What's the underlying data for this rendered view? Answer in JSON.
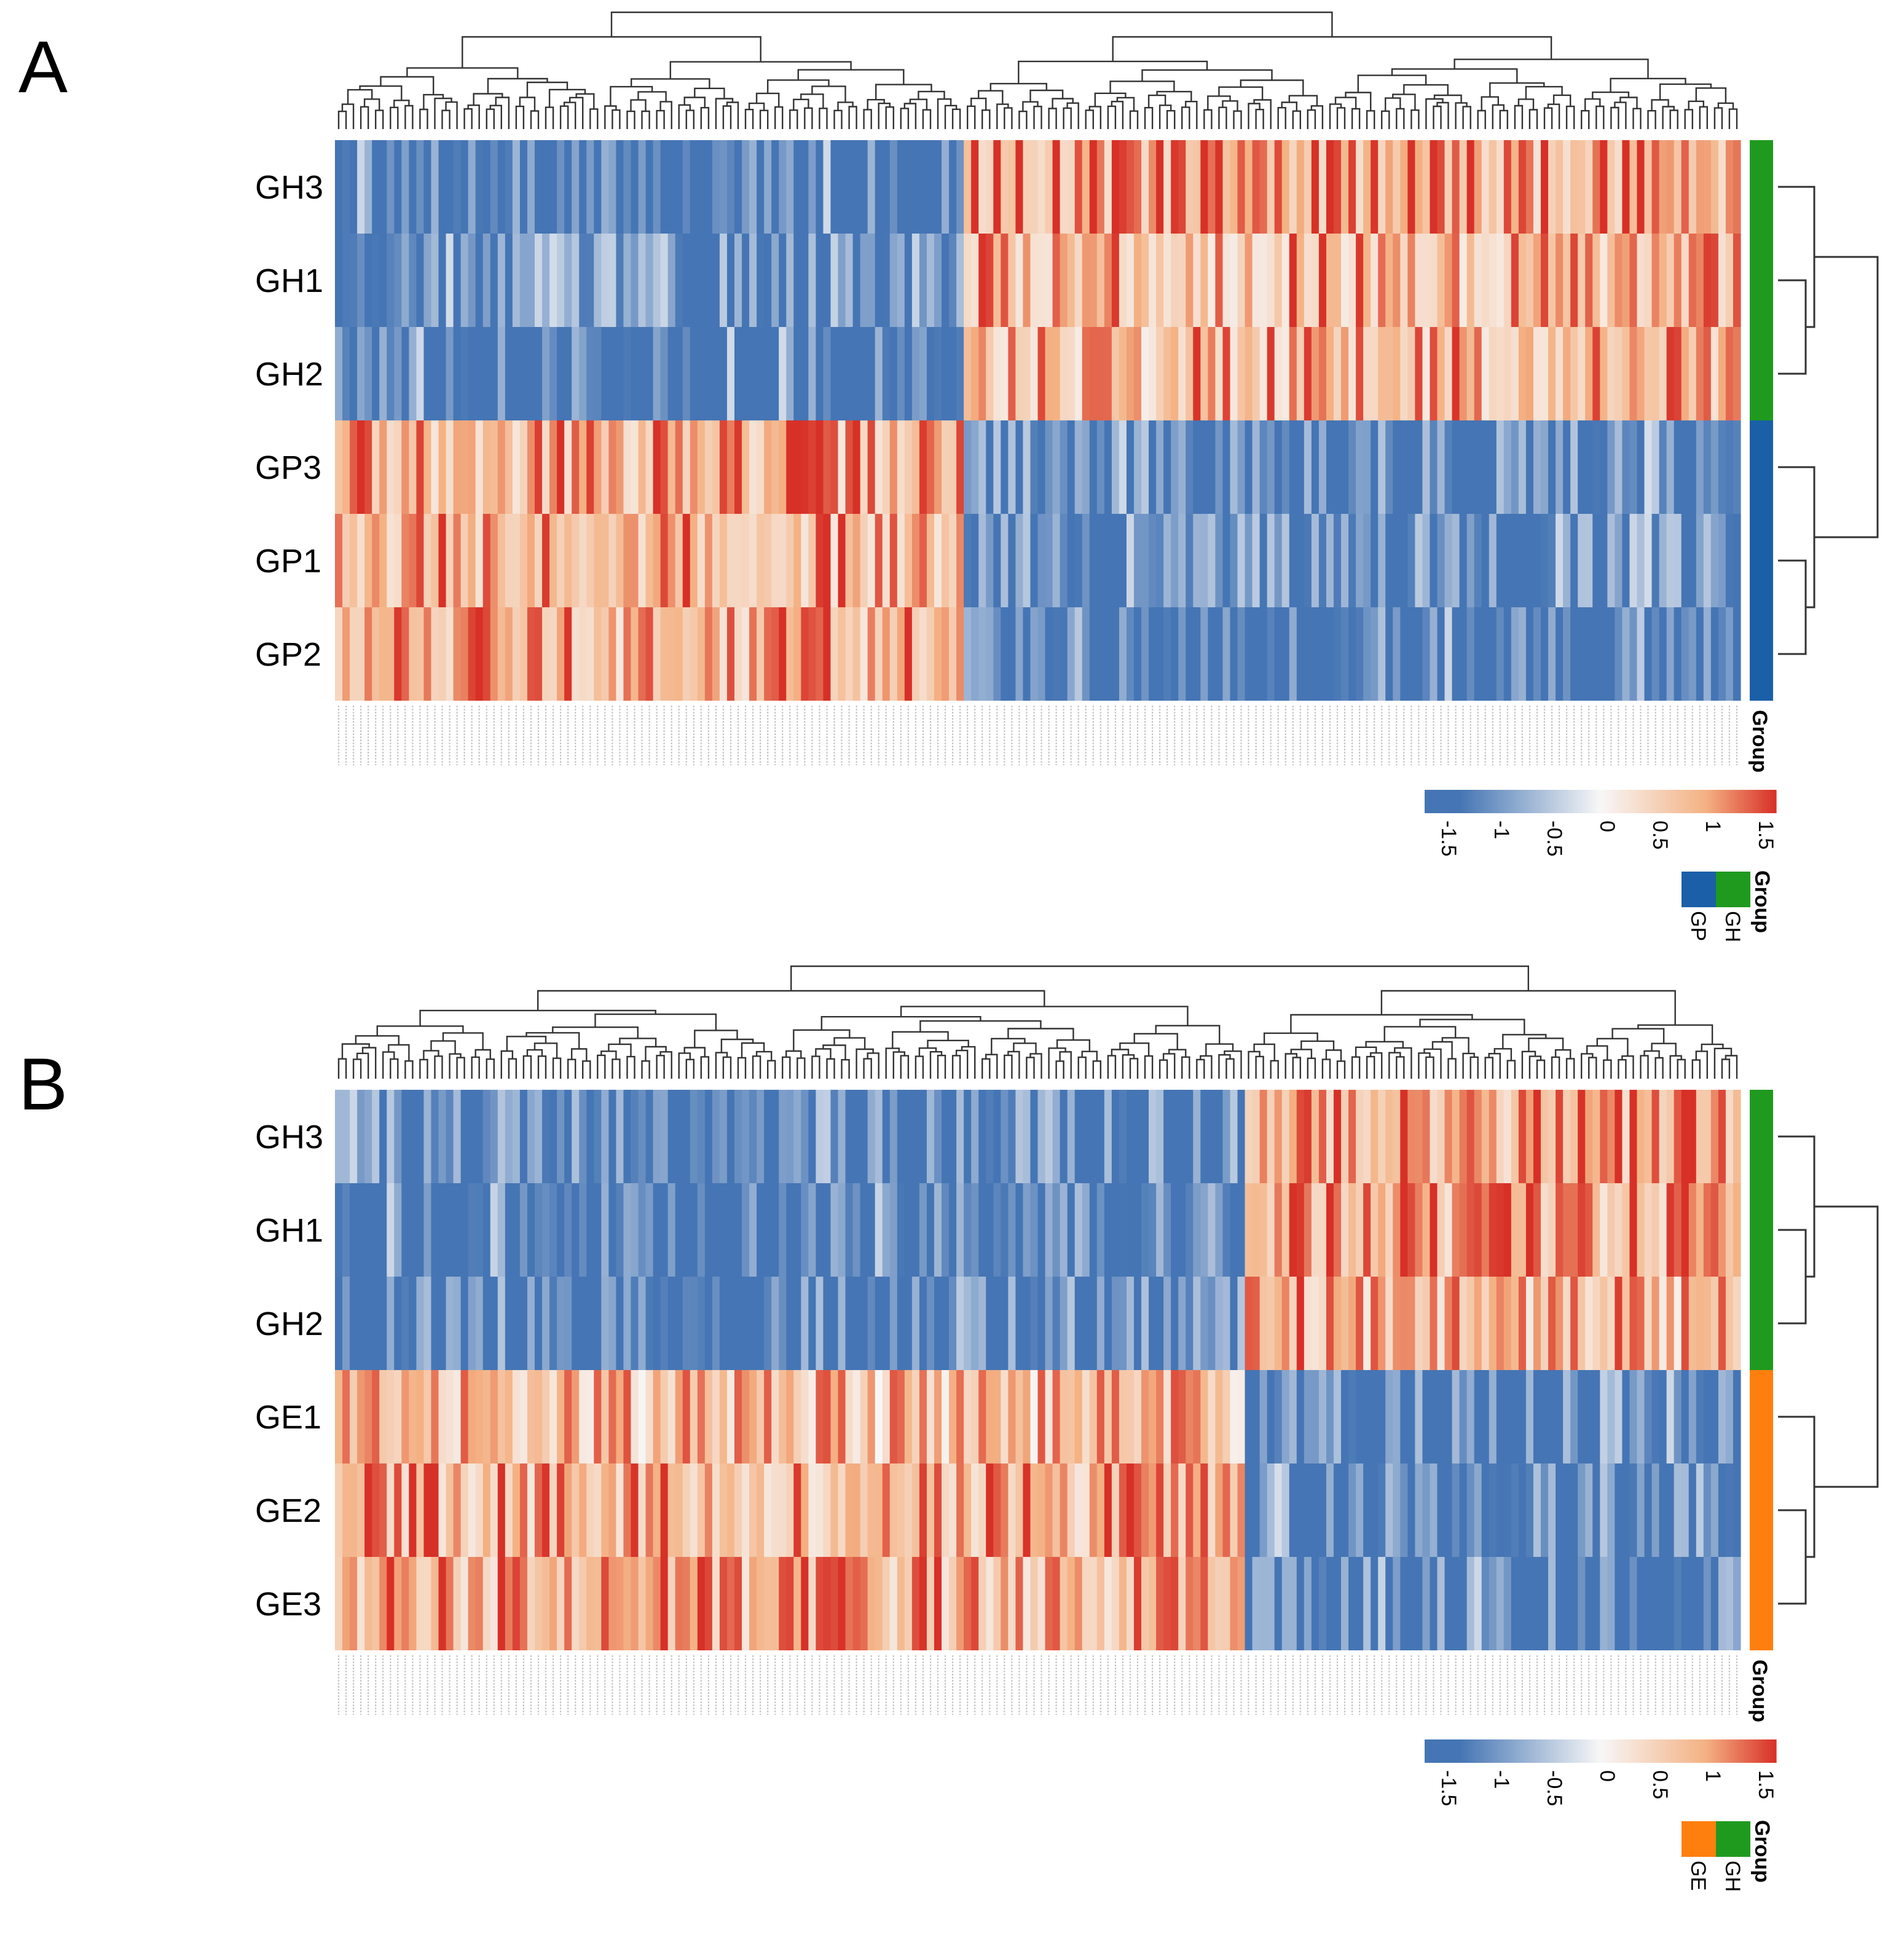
{
  "chart_data": [
    {
      "type": "heatmap",
      "panel_label": "A",
      "rows": [
        "GH3",
        "GH1",
        "GH2",
        "GP3",
        "GP1",
        "GP2"
      ],
      "row_groups": [
        "GH",
        "GH",
        "GH",
        "GP",
        "GP",
        "GP"
      ],
      "n_columns": 190,
      "column_cluster_split": 85,
      "column_cluster_pattern": {
        "left_columns": {
          "GH3": -1.3,
          "GH1": -1.0,
          "GH2": -1.3,
          "GP3": 0.9,
          "GP1": 0.9,
          "GP2": 0.9
        },
        "right_columns": {
          "GH3": 1.0,
          "GH1": 0.8,
          "GH2": 0.8,
          "GP3": -1.1,
          "GP1": -1.1,
          "GP2": -1.3
        }
      },
      "color_scale": {
        "min": -1.5,
        "max": 1.5,
        "ticks": [
          "-1.5",
          "-1",
          "-0.5",
          "0",
          "0.5",
          "1",
          "1.5"
        ],
        "low_color": "#4575b4",
        "mid_color": "#f7f7f7",
        "high_color": "#d73027"
      },
      "annotation": {
        "title": "Group",
        "legend": [
          {
            "name": "GP",
            "color": "#1a5fa8"
          },
          {
            "name": "GH",
            "color": "#1f9a1f"
          }
        ]
      },
      "seed": 7
    },
    {
      "type": "heatmap",
      "panel_label": "B",
      "rows": [
        "GH3",
        "GH1",
        "GH2",
        "GE1",
        "GE2",
        "GE3"
      ],
      "row_groups": [
        "GH",
        "GH",
        "GH",
        "GE",
        "GE",
        "GE"
      ],
      "n_columns": 190,
      "column_cluster_split": 123,
      "column_cluster_pattern": {
        "left_columns": {
          "GH3": -1.1,
          "GH1": -1.2,
          "GH2": -1.2,
          "GE1": 0.7,
          "GE2": 0.9,
          "GE3": 0.9
        },
        "right_columns": {
          "GH3": 1.0,
          "GH1": 0.9,
          "GH2": 0.8,
          "GE1": -1.2,
          "GE2": -1.1,
          "GE3": -1.2
        }
      },
      "color_scale": {
        "min": -1.5,
        "max": 1.5,
        "ticks": [
          "-1.5",
          "-1",
          "-0.5",
          "0",
          "0.5",
          "1",
          "1.5"
        ],
        "low_color": "#4575b4",
        "mid_color": "#f7f7f7",
        "high_color": "#d73027"
      },
      "annotation": {
        "title": "Group",
        "legend": [
          {
            "name": "GE",
            "color": "#ff7f0e"
          },
          {
            "name": "GH",
            "color": "#1f9a1f"
          }
        ]
      },
      "seed": 19
    }
  ]
}
